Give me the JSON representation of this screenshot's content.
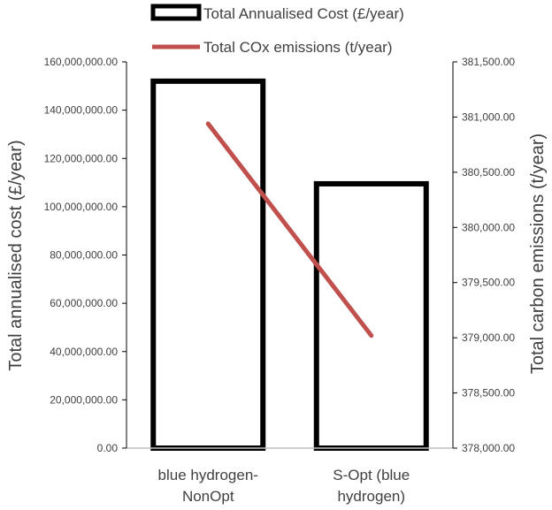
{
  "chart_data": {
    "type": "bar+line",
    "categories": [
      "blue hydrogen-NonOpt",
      "S-Opt (blue hydrogen)"
    ],
    "category_lines": [
      [
        "blue hydrogen-",
        "NonOpt"
      ],
      [
        "S-Opt (blue",
        "hydrogen)"
      ]
    ],
    "series": [
      {
        "name": "Total Annualised Cost (£/year)",
        "type": "bar",
        "axis": "left",
        "values": [
          152000000,
          109500000
        ],
        "style": "white fill, thick black outline"
      },
      {
        "name": "Total COx emissions (t/year)",
        "type": "line",
        "axis": "right",
        "values": [
          380940,
          379020
        ],
        "color": "#c0504d"
      }
    ],
    "y_left": {
      "label": "Total annualised cost (£/year)",
      "ylim": [
        0,
        160000000
      ],
      "ticks": [
        0,
        20000000,
        40000000,
        60000000,
        80000000,
        100000000,
        120000000,
        140000000,
        160000000
      ],
      "tick_labels": [
        "0.00",
        "20,000,000.00",
        "40,000,000.00",
        "60,000,000.00",
        "80,000,000.00",
        "100,000,000.00",
        "120,000,000.00",
        "140,000,000.00",
        "160,000,000.00"
      ]
    },
    "y_right": {
      "label": "Total carbon emissions (t/year)",
      "ylim": [
        378000,
        381500
      ],
      "ticks": [
        378000,
        378500,
        379000,
        379500,
        380000,
        380500,
        381000,
        381500
      ],
      "tick_labels": [
        "378,000.00",
        "378,500.00",
        "379,000.00",
        "379,500.00",
        "380,000.00",
        "380,500.00",
        "381,000.00",
        "381,500.00"
      ]
    },
    "legend_position": "top",
    "grid": false
  },
  "colors": {
    "bar_outline": "#000000",
    "line": "#c0504d",
    "text": "#404040",
    "axis": "#000000"
  }
}
